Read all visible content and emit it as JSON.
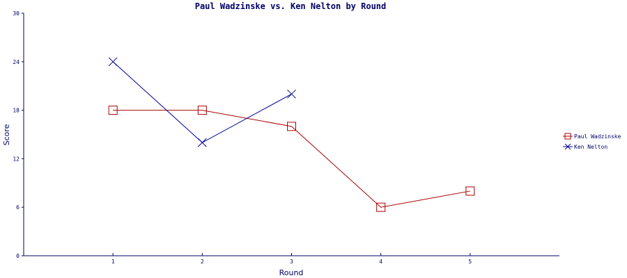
{
  "chart_data": {
    "type": "line",
    "title": "Paul Wadzinske vs. Ken Nelton by Round",
    "xlabel": "Round",
    "ylabel": "Score",
    "x": [
      1,
      2,
      3,
      4,
      5
    ],
    "x_ticks": [
      "1",
      "2",
      "3",
      "4",
      "5"
    ],
    "xlim": [
      0,
      6
    ],
    "ylim": [
      0,
      30
    ],
    "y_ticks": [
      "0",
      "6",
      "12",
      "18",
      "24",
      "30"
    ],
    "grid": false,
    "legend_position": "right",
    "series": [
      {
        "name": "Paul Wadzinske",
        "color": "#aa0000",
        "marker": "square",
        "x": [
          1,
          2,
          3,
          4,
          5
        ],
        "values": [
          18,
          18,
          16,
          6,
          8
        ]
      },
      {
        "name": "Ken Nelton",
        "color": "#000099",
        "marker": "x",
        "x": [
          1,
          2,
          3
        ],
        "values": [
          24,
          14,
          20
        ]
      }
    ]
  }
}
